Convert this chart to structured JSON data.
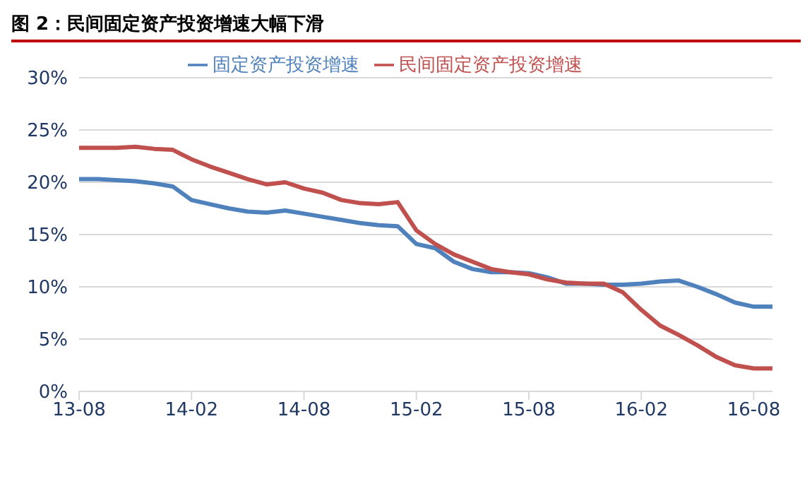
{
  "chart_data": {
    "type": "line",
    "title": "图 2：民间固定资产投资增速大幅下滑",
    "categories": [
      "13-08",
      null,
      null,
      null,
      null,
      null,
      "14-02",
      null,
      null,
      null,
      null,
      null,
      "14-08",
      null,
      null,
      null,
      null,
      null,
      "15-02",
      null,
      null,
      null,
      null,
      null,
      "15-08",
      null,
      null,
      null,
      null,
      null,
      "16-02",
      null,
      null,
      null,
      null,
      null,
      "16-08",
      null
    ],
    "series": [
      {
        "name": "固定资产投资增速",
        "color": "#4f81bd",
        "values": [
          20.3,
          20.3,
          20.2,
          20.1,
          19.9,
          19.6,
          18.3,
          17.9,
          17.5,
          17.2,
          17.1,
          17.3,
          17.0,
          16.7,
          16.4,
          16.1,
          15.9,
          15.8,
          14.1,
          13.7,
          12.4,
          11.7,
          11.4,
          11.4,
          11.3,
          10.9,
          10.3,
          10.3,
          10.2,
          10.2,
          10.3,
          10.5,
          10.6,
          10.0,
          9.3,
          8.5,
          8.1,
          8.1
        ]
      },
      {
        "name": "民间固定资产投资增速",
        "color": "#c0504d",
        "values": [
          23.3,
          23.3,
          23.3,
          23.4,
          23.2,
          23.1,
          22.2,
          21.5,
          20.9,
          20.3,
          19.8,
          20.0,
          19.4,
          19.0,
          18.3,
          18.0,
          17.9,
          18.1,
          15.4,
          14.1,
          13.1,
          12.4,
          11.7,
          11.4,
          11.2,
          10.7,
          10.4,
          10.3,
          10.3,
          9.5,
          7.8,
          6.3,
          5.4,
          4.4,
          3.3,
          2.5,
          2.2,
          2.2
        ]
      }
    ],
    "ylim": [
      0,
      30
    ],
    "yticks": [
      {
        "value": 0,
        "label": "0%"
      },
      {
        "value": 5,
        "label": "5%"
      },
      {
        "value": 10,
        "label": "10%"
      },
      {
        "value": 15,
        "label": "15%"
      },
      {
        "value": 20,
        "label": "20%"
      },
      {
        "value": 25,
        "label": "25%"
      },
      {
        "value": 30,
        "label": "30%"
      }
    ],
    "grid": "y",
    "legend": "top",
    "marker": "none",
    "line_style": "solid"
  }
}
